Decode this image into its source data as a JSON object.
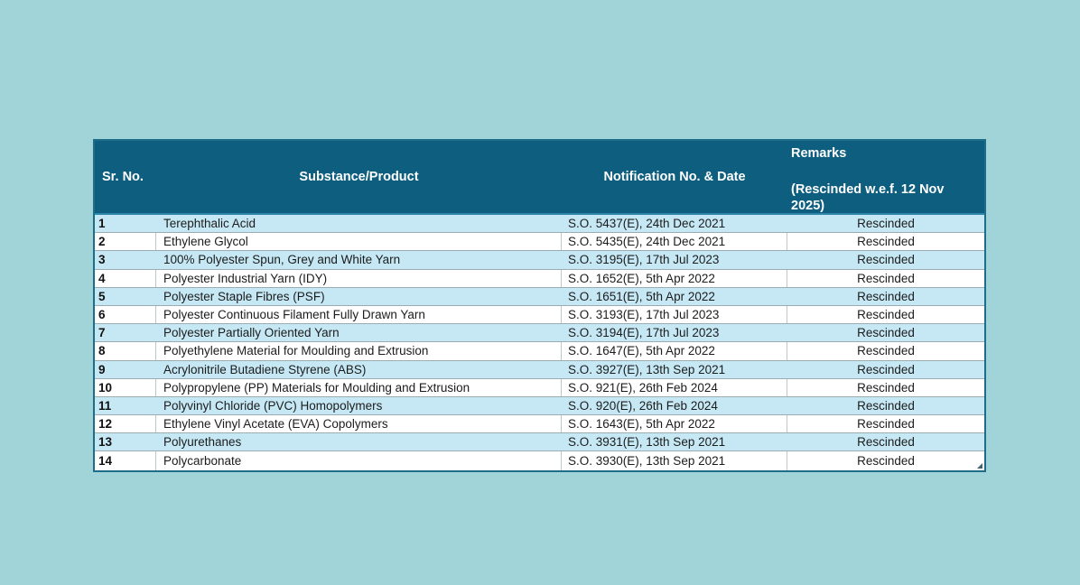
{
  "page": {
    "background_color": "#a0d4d9"
  },
  "colors": {
    "header_background": "#0e5f7f",
    "header_text": "#ffffff",
    "row_background": "#ffffff",
    "row_alternate_background": "#c6e8f5",
    "outer_border": "#1e6d88",
    "grid_line": "#9dabb2",
    "body_text": "#1c1c1c"
  },
  "table": {
    "columns": [
      {
        "id": "sr",
        "label": "Sr. No."
      },
      {
        "id": "substance",
        "label": "Substance/Product"
      },
      {
        "id": "notification",
        "label": "Notification No. & Date"
      },
      {
        "id": "remarks",
        "label": "Remarks",
        "note": "(Rescinded w.e.f. 12 Nov 2025)"
      }
    ],
    "rows": [
      {
        "sr": "1",
        "substance": "Terephthalic Acid",
        "notification": "S.O. 5437(E), 24th Dec 2021",
        "remarks": "Rescinded"
      },
      {
        "sr": "2",
        "substance": "Ethylene Glycol",
        "notification": "S.O. 5435(E), 24th Dec 2021",
        "remarks": "Rescinded"
      },
      {
        "sr": "3",
        "substance": "100% Polyester Spun, Grey and White Yarn",
        "notification": "S.O. 3195(E), 17th Jul 2023",
        "remarks": "Rescinded"
      },
      {
        "sr": "4",
        "substance": "Polyester Industrial Yarn (IDY)",
        "notification": "S.O. 1652(E), 5th Apr 2022",
        "remarks": "Rescinded"
      },
      {
        "sr": "5",
        "substance": "Polyester Staple Fibres (PSF)",
        "notification": "S.O. 1651(E), 5th Apr 2022",
        "remarks": "Rescinded"
      },
      {
        "sr": "6",
        "substance": "Polyester Continuous Filament Fully Drawn Yarn",
        "notification": "S.O. 3193(E), 17th Jul 2023",
        "remarks": "Rescinded"
      },
      {
        "sr": "7",
        "substance": "Polyester Partially Oriented Yarn",
        "notification": "S.O. 3194(E), 17th Jul 2023",
        "remarks": "Rescinded"
      },
      {
        "sr": "8",
        "substance": "Polyethylene Material for Moulding and Extrusion",
        "notification": "S.O. 1647(E), 5th Apr 2022",
        "remarks": "Rescinded"
      },
      {
        "sr": "9",
        "substance": "Acrylonitrile Butadiene Styrene (ABS)",
        "notification": "S.O. 3927(E), 13th Sep 2021",
        "remarks": "Rescinded"
      },
      {
        "sr": "10",
        "substance": "Polypropylene (PP) Materials for Moulding and Extrusion",
        "notification": "S.O. 921(E), 26th Feb 2024",
        "remarks": "Rescinded"
      },
      {
        "sr": "11",
        "substance": "Polyvinyl Chloride (PVC) Homopolymers",
        "notification": "S.O. 920(E), 26th Feb 2024",
        "remarks": "Rescinded"
      },
      {
        "sr": "12",
        "substance": "Ethylene Vinyl Acetate (EVA) Copolymers",
        "notification": "S.O. 1643(E), 5th Apr 2022",
        "remarks": "Rescinded"
      },
      {
        "sr": "13",
        "substance": "Polyurethanes",
        "notification": "S.O. 3931(E), 13th Sep 2021",
        "remarks": "Rescinded"
      },
      {
        "sr": "14",
        "substance": "Polycarbonate",
        "notification": "S.O. 3930(E), 13th Sep 2021",
        "remarks": "Rescinded"
      }
    ]
  }
}
